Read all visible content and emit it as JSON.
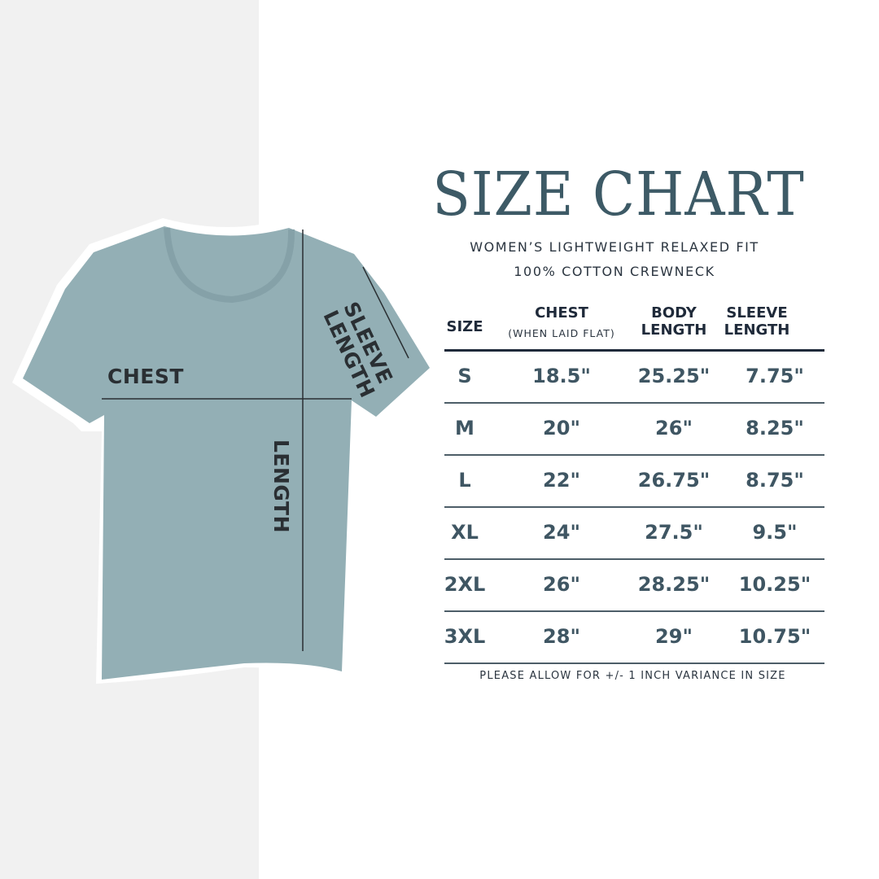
{
  "title": "SIZE CHART",
  "subtitle_line1": "WOMEN’S LIGHTWEIGHT RELAXED FIT",
  "subtitle_line2": "100% COTTON CREWNECK",
  "diagram_labels": {
    "chest": "CHEST",
    "sleeve_line1": "SLEEVE",
    "sleeve_line2": "LENGTH",
    "length": "LENGTH"
  },
  "colors": {
    "title": "#3d5a66",
    "shirt": "#93afb5",
    "values": "#3f5663",
    "header": "#1f2a3a"
  },
  "table": {
    "headers": {
      "size": "SIZE",
      "chest": "CHEST",
      "chest_note": "(WHEN LAID FLAT)",
      "body_line1": "BODY",
      "body_line2": "LENGTH",
      "sleeve_line1": "SLEEVE",
      "sleeve_line2": "LENGTH"
    },
    "rows": [
      {
        "size": "S",
        "chest": "18.5\"",
        "body": "25.25\"",
        "sleeve": "7.75\""
      },
      {
        "size": "M",
        "chest": "20\"",
        "body": "26\"",
        "sleeve": "8.25\""
      },
      {
        "size": "L",
        "chest": "22\"",
        "body": "26.75\"",
        "sleeve": "8.75\""
      },
      {
        "size": "XL",
        "chest": "24\"",
        "body": "27.5\"",
        "sleeve": "9.5\""
      },
      {
        "size": "2XL",
        "chest": "26\"",
        "body": "28.25\"",
        "sleeve": "10.25\""
      },
      {
        "size": "3XL",
        "chest": "28\"",
        "body": "29\"",
        "sleeve": "10.75\""
      }
    ]
  },
  "note": "PLEASE ALLOW FOR +/- 1 INCH VARIANCE IN SIZE"
}
